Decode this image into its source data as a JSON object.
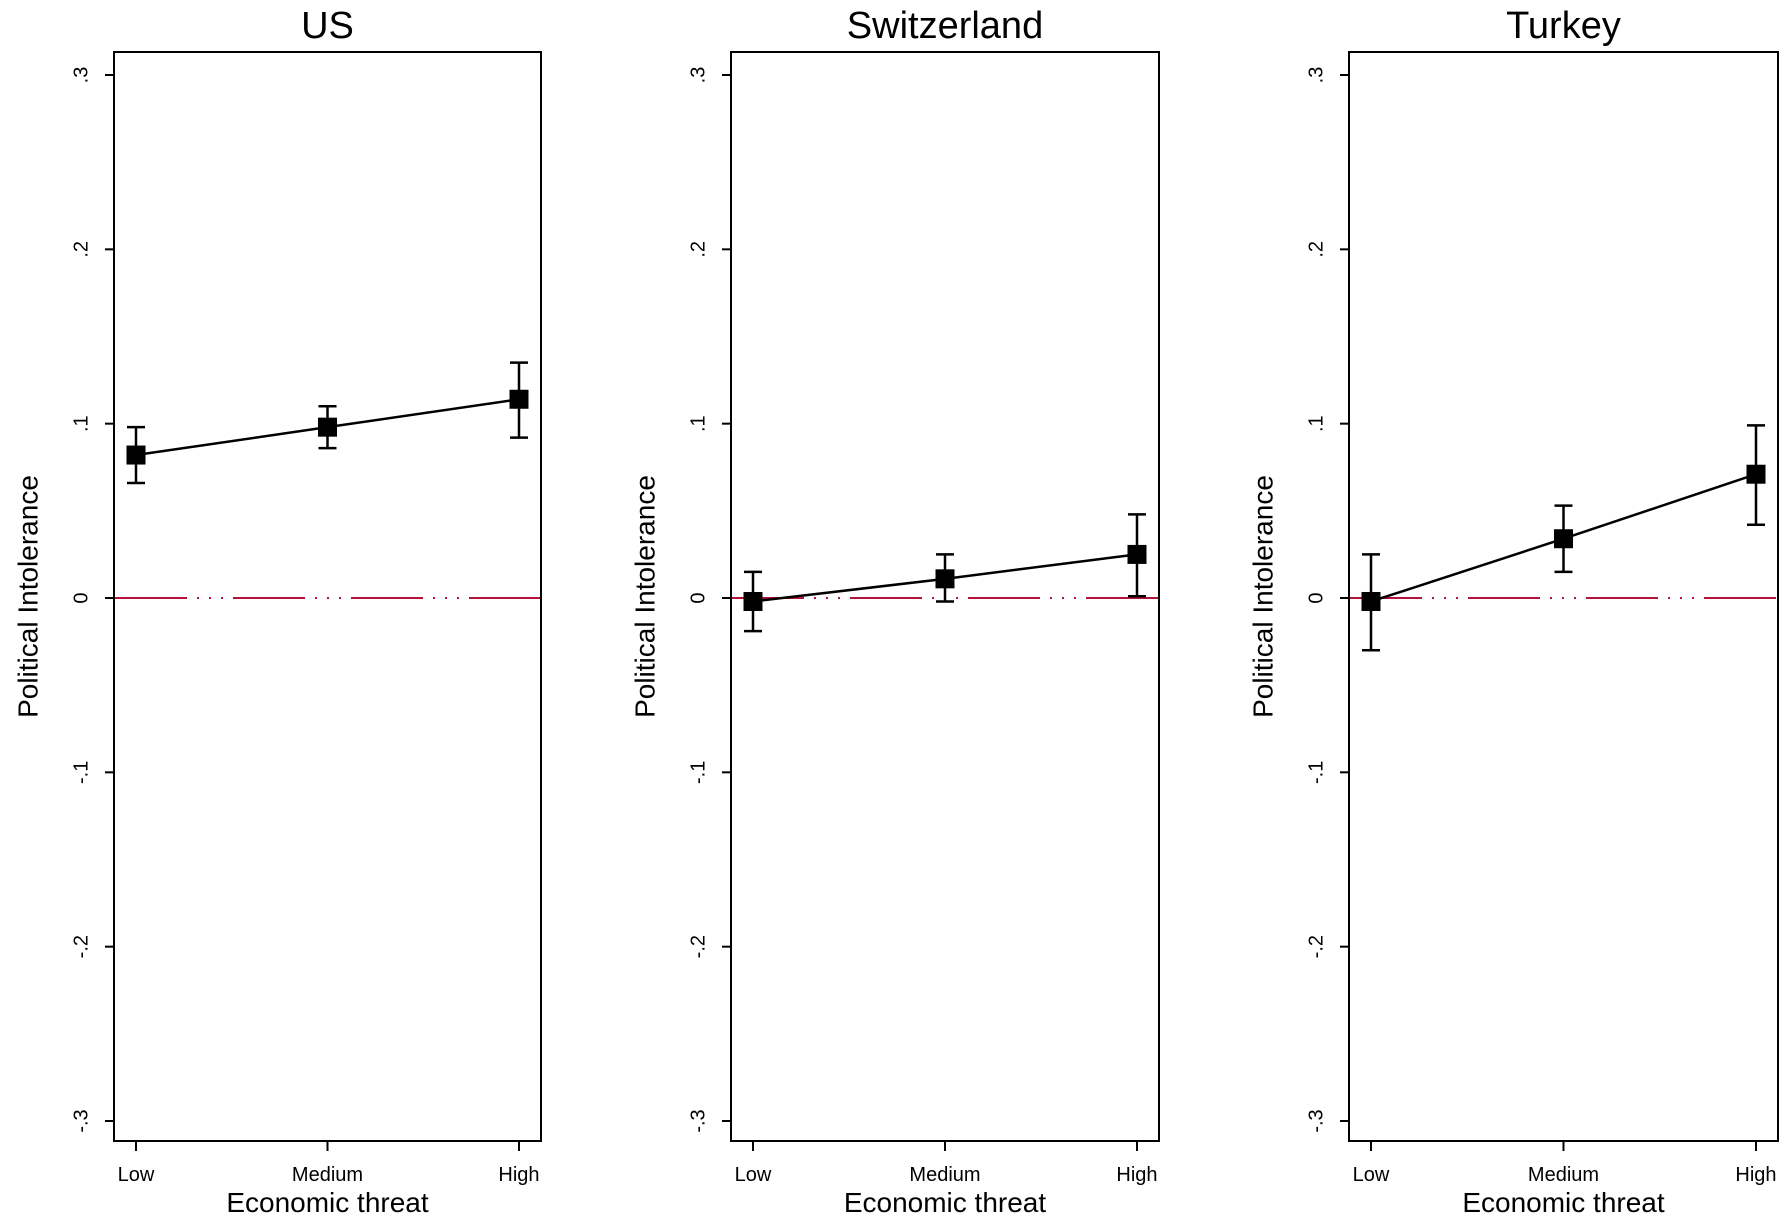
{
  "chart_data": [
    {
      "type": "line",
      "title": "US",
      "xlabel": "Economic threat",
      "ylabel": "Political Intolerance",
      "categories": [
        "Low",
        "Medium",
        "High"
      ],
      "values": [
        0.082,
        0.098,
        0.114
      ],
      "ci_lower": [
        0.066,
        0.086,
        0.092
      ],
      "ci_upper": [
        0.098,
        0.11,
        0.135
      ],
      "reference_line": 0,
      "ylim": [
        -0.3,
        0.3
      ],
      "yticks": [
        0.3,
        0.2,
        0.1,
        0,
        -0.1,
        -0.2,
        -0.3
      ],
      "ytick_labels": [
        ".3",
        ".2",
        ".1",
        "0",
        "-.1",
        "-.2",
        "-.3"
      ]
    },
    {
      "type": "line",
      "title": "Switzerland",
      "xlabel": "Economic threat",
      "ylabel": "Political Intolerance",
      "categories": [
        "Low",
        "Medium",
        "High"
      ],
      "values": [
        -0.002,
        0.011,
        0.025
      ],
      "ci_lower": [
        -0.019,
        -0.002,
        0.001
      ],
      "ci_upper": [
        0.015,
        0.025,
        0.048
      ],
      "reference_line": 0,
      "ylim": [
        -0.3,
        0.3
      ],
      "yticks": [
        0.3,
        0.2,
        0.1,
        0,
        -0.1,
        -0.2,
        -0.3
      ],
      "ytick_labels": [
        ".3",
        ".2",
        ".1",
        "0",
        "-.1",
        "-.2",
        "-.3"
      ]
    },
    {
      "type": "line",
      "title": "Turkey",
      "xlabel": "Economic threat",
      "ylabel": "Political Intolerance",
      "categories": [
        "Low",
        "Medium",
        "High"
      ],
      "values": [
        -0.002,
        0.034,
        0.071
      ],
      "ci_lower": [
        -0.03,
        0.015,
        0.042
      ],
      "ci_upper": [
        0.025,
        0.053,
        0.099
      ],
      "reference_line": 0,
      "ylim": [
        -0.3,
        0.3
      ],
      "yticks": [
        0.3,
        0.2,
        0.1,
        0,
        -0.1,
        -0.2,
        -0.3
      ],
      "ytick_labels": [
        ".3",
        ".2",
        ".1",
        "0",
        "-.1",
        "-.2",
        "-.3"
      ]
    }
  ],
  "colors": {
    "series": "#000000",
    "reference_line": "#b5123a",
    "frame": "#000000"
  }
}
